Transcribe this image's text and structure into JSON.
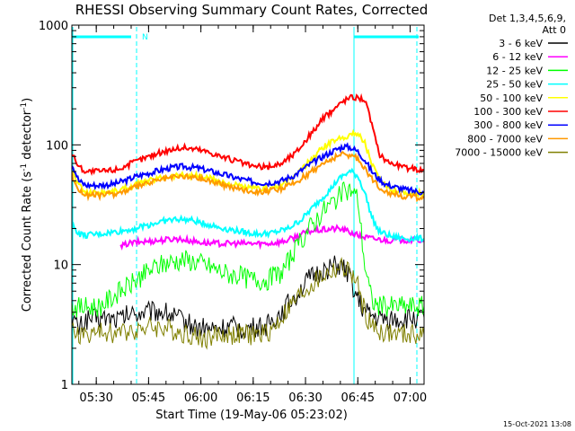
{
  "chart_data": {
    "type": "line",
    "title": "RHESSI Observing Summary Count Rates, Corrected",
    "xlabel": "Start Time (19-May-06 05:23:02)",
    "ylabel_main": "Corrected Count Rate (s",
    "ylabel_sup1": "-1",
    "ylabel_mid": " detector",
    "ylabel_sup2": "-1",
    "ylabel_end": ")",
    "yscale": "log",
    "ylim": [
      1,
      1000
    ],
    "xlim_minutes": [
      0,
      101
    ],
    "xticks": [
      {
        "label": "05:30",
        "minute": 7
      },
      {
        "label": "05:45",
        "minute": 22
      },
      {
        "label": "06:00",
        "minute": 37
      },
      {
        "label": "06:15",
        "minute": 52
      },
      {
        "label": "06:30",
        "minute": 67
      },
      {
        "label": "06:45",
        "minute": 82
      },
      {
        "label": "07:00",
        "minute": 97
      }
    ],
    "yticks": [
      {
        "label": "1",
        "value": 1
      },
      {
        "label": "10",
        "value": 10
      },
      {
        "label": "100",
        "value": 100
      },
      {
        "label": "1000",
        "value": 1000
      }
    ],
    "legend_header": [
      "Det 1,3,4,5,6,9,",
      "Att 0"
    ],
    "series": [
      {
        "name": "3 - 6 keV",
        "color": "#000000",
        "x": [
          0,
          2,
          4,
          8,
          14,
          16,
          20,
          26,
          30,
          36,
          40,
          46,
          50,
          56,
          60,
          64,
          68,
          72,
          76,
          78,
          80,
          82,
          84,
          88,
          94,
          101
        ],
        "y": [
          3.6,
          2.9,
          3.5,
          3.6,
          3.5,
          3.8,
          4.0,
          4.1,
          3.6,
          3.0,
          2.9,
          3.0,
          2.9,
          3.1,
          4.0,
          5.5,
          7.5,
          9.0,
          9.8,
          9.2,
          7.5,
          5.0,
          4.0,
          3.5,
          3.5,
          3.6
        ]
      },
      {
        "name": "6 - 12 keV",
        "color": "#ff00ff",
        "x": [
          14,
          16,
          20,
          26,
          30,
          36,
          40,
          46,
          50,
          56,
          60,
          62,
          64,
          66,
          68,
          72,
          76,
          78,
          80,
          82,
          86,
          90,
          94,
          98,
          101
        ],
        "y": [
          14,
          15,
          15.5,
          16,
          16.5,
          15.5,
          15,
          15,
          15,
          15,
          15.5,
          16,
          17,
          18,
          19,
          19.5,
          20,
          19.5,
          18.5,
          17.5,
          16.5,
          16,
          16,
          16,
          16
        ]
      },
      {
        "name": "12 - 25 keV",
        "color": "#00ff00",
        "x": [
          0,
          2,
          4,
          8,
          14,
          16,
          20,
          24,
          28,
          32,
          36,
          40,
          44,
          48,
          52,
          56,
          60,
          64,
          68,
          72,
          76,
          78,
          80,
          82,
          84,
          86,
          88,
          92,
          96,
          101
        ],
        "y": [
          4.5,
          4.4,
          4.4,
          4.5,
          6.0,
          6.5,
          8.0,
          9.5,
          10.5,
          11,
          10.5,
          9.5,
          8.5,
          8.0,
          7.5,
          7.5,
          8.5,
          13,
          20,
          28,
          36,
          40,
          42,
          36,
          10,
          5.0,
          4.5,
          4.5,
          4.5,
          4.5
        ]
      },
      {
        "name": "25 - 50 keV",
        "color": "#00ffff",
        "x": [
          0,
          2,
          4,
          8,
          14,
          18,
          22,
          26,
          30,
          34,
          38,
          42,
          46,
          50,
          54,
          58,
          62,
          66,
          70,
          74,
          76,
          78,
          80,
          82,
          84,
          86,
          88,
          92,
          96,
          101
        ],
        "y": [
          22,
          18,
          17.5,
          18,
          19,
          20,
          21.5,
          23,
          24,
          23.5,
          22,
          20.5,
          19.5,
          18.5,
          18,
          18.5,
          20,
          24,
          32,
          42,
          50,
          56,
          60,
          55,
          40,
          25,
          19,
          17,
          16.5,
          16.5
        ]
      },
      {
        "name": "50 - 100 keV",
        "color": "#ffff00",
        "x": [
          0,
          2,
          4,
          8,
          12,
          14,
          16,
          18,
          20,
          24,
          28,
          32,
          36,
          40,
          44,
          48,
          52,
          56,
          60,
          64,
          68,
          72,
          76,
          80,
          82,
          84,
          86,
          88,
          90,
          92,
          96,
          101
        ],
        "y": [
          60,
          46,
          40,
          40,
          41,
          42,
          44,
          46,
          48,
          52,
          55,
          56,
          55,
          52,
          48,
          45,
          43,
          43,
          46,
          55,
          72,
          95,
          112,
          122,
          125,
          105,
          70,
          52,
          45,
          42,
          40,
          39
        ]
      },
      {
        "name": "100 - 300 keV",
        "color": "#ff0000",
        "x": [
          0,
          2,
          4,
          8,
          12,
          14,
          16,
          18,
          20,
          24,
          28,
          32,
          36,
          40,
          44,
          48,
          52,
          56,
          60,
          64,
          68,
          72,
          76,
          78,
          80,
          82,
          84,
          86,
          88,
          90,
          92,
          96,
          101
        ],
        "y": [
          85,
          66,
          60,
          60,
          62,
          64,
          68,
          72,
          76,
          84,
          91,
          95,
          92,
          86,
          78,
          72,
          66,
          65,
          70,
          85,
          118,
          165,
          210,
          235,
          250,
          250,
          240,
          150,
          85,
          75,
          70,
          64,
          62
        ]
      },
      {
        "name": "300 - 800 keV",
        "color": "#0000ff",
        "x": [
          0,
          2,
          4,
          8,
          12,
          14,
          16,
          18,
          20,
          24,
          28,
          32,
          36,
          40,
          44,
          48,
          52,
          56,
          60,
          64,
          68,
          72,
          76,
          78,
          80,
          82,
          84,
          86,
          88,
          90,
          92,
          96,
          101
        ],
        "y": [
          70,
          50,
          46,
          46,
          47,
          49,
          51,
          54,
          56,
          60,
          64,
          66,
          64,
          60,
          56,
          52,
          49,
          48,
          50,
          56,
          68,
          80,
          92,
          97,
          95,
          88,
          75,
          60,
          52,
          47,
          45,
          42,
          40
        ]
      },
      {
        "name": "800 - 7000 keV",
        "color": "#ff9900",
        "x": [
          0,
          2,
          4,
          8,
          12,
          14,
          16,
          18,
          20,
          24,
          28,
          32,
          36,
          40,
          44,
          48,
          52,
          56,
          60,
          64,
          68,
          72,
          76,
          78,
          80,
          82,
          84,
          86,
          88,
          90,
          92,
          96,
          101
        ],
        "y": [
          56,
          42,
          38,
          38,
          39,
          40,
          42,
          44,
          46,
          50,
          53,
          55,
          53,
          50,
          46,
          43,
          41,
          41,
          43,
          48,
          58,
          70,
          80,
          84,
          82,
          76,
          65,
          52,
          45,
          41,
          39,
          37,
          36
        ]
      },
      {
        "name": "7000 - 15000 keV",
        "color": "#808000",
        "x": [
          0,
          2,
          4,
          8,
          14,
          16,
          20,
          26,
          30,
          34,
          38,
          42,
          46,
          50,
          54,
          56,
          58,
          60,
          64,
          68,
          72,
          76,
          78,
          80,
          82,
          84,
          86,
          88,
          92,
          96,
          101
        ],
        "y": [
          2.8,
          2.6,
          2.6,
          2.7,
          2.7,
          2.8,
          3.0,
          3.0,
          2.8,
          2.6,
          2.4,
          2.6,
          2.6,
          2.6,
          2.6,
          2.7,
          3.0,
          3.6,
          5.0,
          6.5,
          8.0,
          9.2,
          9.4,
          8.5,
          6.5,
          4.0,
          3.0,
          2.8,
          2.6,
          2.6,
          2.6
        ]
      }
    ]
  },
  "footer_date": "15-Oct-2021 13:08",
  "annotation_N": "N"
}
